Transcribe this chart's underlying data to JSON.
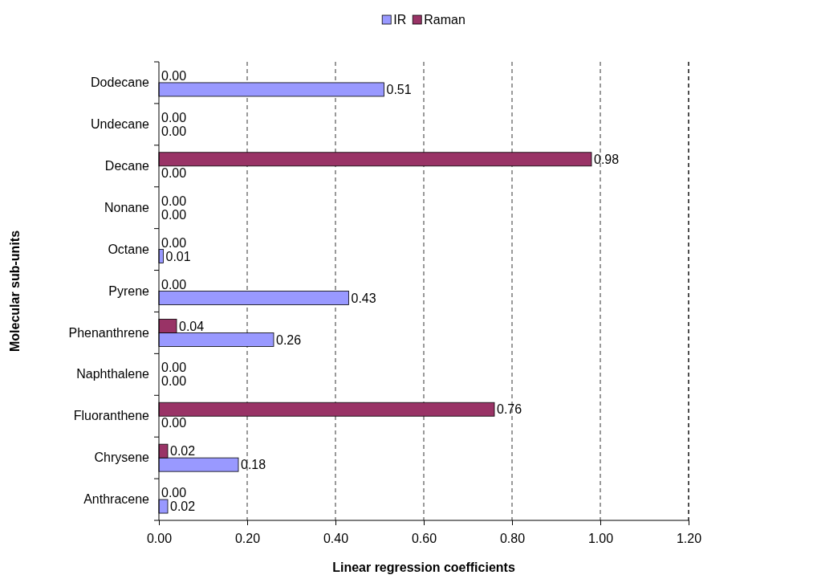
{
  "chart_data": {
    "type": "bar",
    "orientation": "horizontal",
    "xlabel": "Linear regression coefficients",
    "ylabel": "Molecular sub-units",
    "categories": [
      "Dodecane",
      "Undecane",
      "Decane",
      "Nonane",
      "Octane",
      "Pyrene",
      "Phenanthrene",
      "Naphthalene",
      "Fluoranthene",
      "Chrysene",
      "Anthracene"
    ],
    "series": [
      {
        "name": "IR",
        "color": "#9999ff",
        "values": [
          0.51,
          0,
          0,
          0,
          0.01,
          0.43,
          0.26,
          0,
          0,
          0.18,
          0.02
        ],
        "value_labels": [
          "0.51",
          "0.00",
          "0.00",
          "0.00",
          "0.01",
          "0.43",
          "0.26",
          "0.00",
          "0.00",
          "0.18",
          "0.02"
        ]
      },
      {
        "name": "Raman",
        "color": "#993366",
        "values": [
          0,
          0,
          0.98,
          0,
          0,
          0,
          0.04,
          0,
          0.76,
          0.02,
          0
        ],
        "value_labels": [
          "0.00",
          "0.00",
          "0.98",
          "0.00",
          "0.00",
          "0.00",
          "0.04",
          "0.00",
          "0.76",
          "0.02",
          "0.00"
        ]
      }
    ],
    "xlim": [
      0,
      1.2
    ],
    "xticks": [
      {
        "value": 0,
        "label": "0.00"
      },
      {
        "value": 0.2,
        "label": "0.20"
      },
      {
        "value": 0.4,
        "label": "0.40"
      },
      {
        "value": 0.6,
        "label": "0.60"
      },
      {
        "value": 0.8,
        "label": "0.80"
      },
      {
        "value": 1,
        "label": "1.00"
      },
      {
        "value": 1.2,
        "label": "1.20"
      }
    ],
    "grid": "x",
    "line_style": "dashed",
    "legend": "top"
  }
}
